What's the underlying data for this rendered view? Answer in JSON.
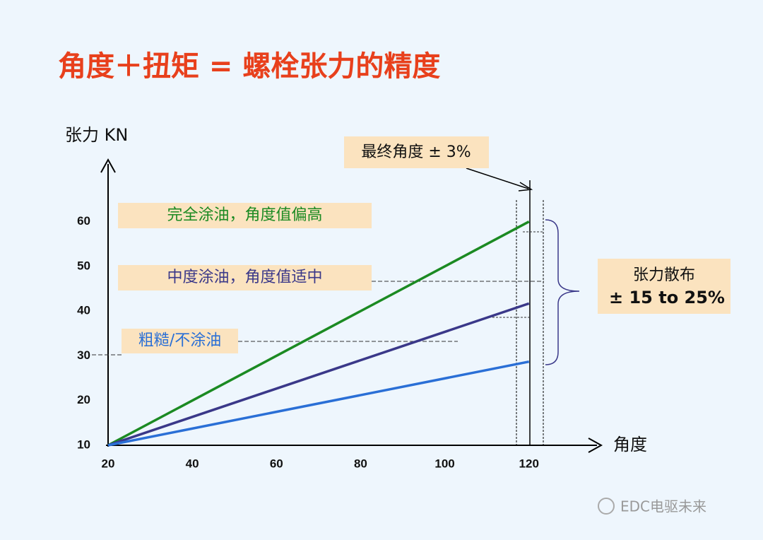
{
  "chart_data": {
    "type": "line",
    "title": "角度＋扭矩 = 螺栓张力的精度",
    "y_label": "张力 KN",
    "x_label": "角度",
    "x": [
      20,
      120
    ],
    "series": [
      {
        "name": "完全涂油，角度值偏高",
        "color": "#1b8a22",
        "values": [
          10,
          60
        ]
      },
      {
        "name": "中度涂油，角度值适中",
        "color": "#3a3889",
        "values": [
          10,
          41.7
        ]
      },
      {
        "name": "粗糙/不涂油",
        "color": "#2a6fd6",
        "values": [
          10,
          28.7
        ]
      }
    ],
    "xlim": [
      20,
      137
    ],
    "ylim": [
      10,
      74
    ],
    "xticks": [
      20,
      40,
      60,
      80,
      100,
      120
    ],
    "yticks": [
      10,
      20,
      30,
      40,
      50,
      60
    ],
    "annotations": [
      "最终角度 ± 3%",
      "张力散布",
      "± 15 to 25%"
    ],
    "watermark": "EDC电驱未来"
  }
}
